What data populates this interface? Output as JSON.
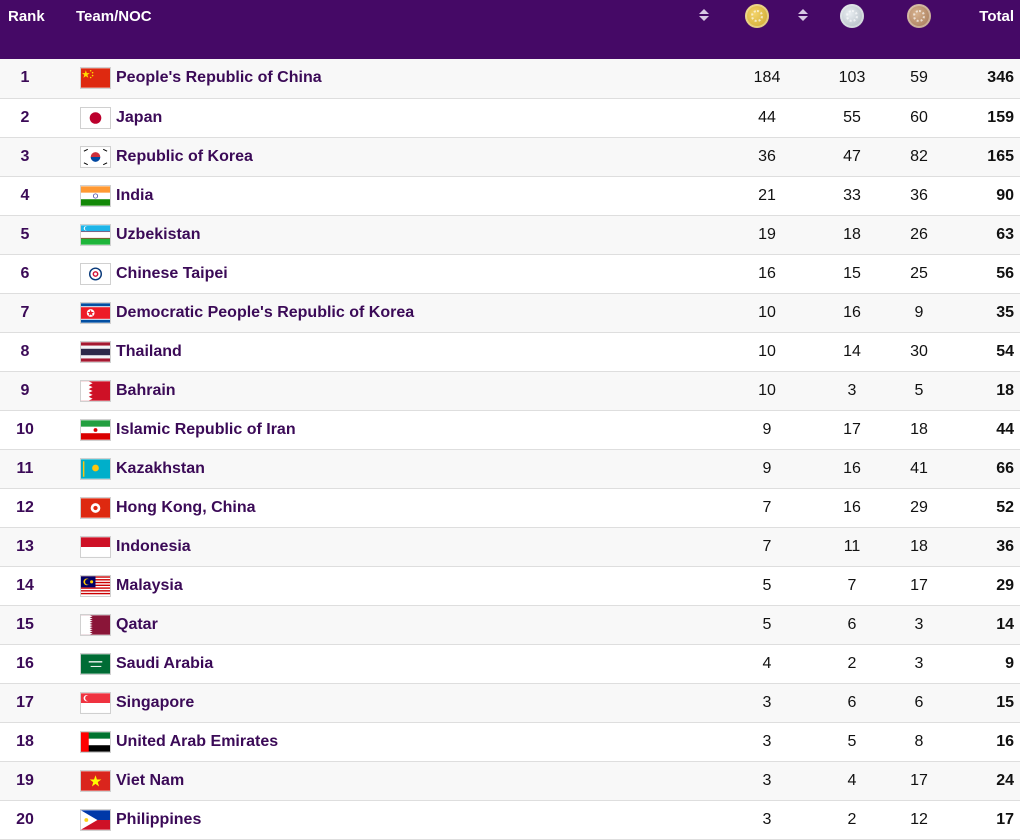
{
  "header": {
    "rank_label": "Rank",
    "team_label": "Team/NOC",
    "total_label": "Total"
  },
  "colors": {
    "header_bg": "#450966",
    "link": "#3b0a57"
  },
  "rows": [
    {
      "rank": "1",
      "name": "People's Republic of China",
      "flag": "china-flag-icon",
      "gold": "184",
      "silver": "103",
      "bronze": "59",
      "total": "346"
    },
    {
      "rank": "2",
      "name": "Japan",
      "flag": "japan-flag-icon",
      "gold": "44",
      "silver": "55",
      "bronze": "60",
      "total": "159"
    },
    {
      "rank": "3",
      "name": "Republic of Korea",
      "flag": "korea-flag-icon",
      "gold": "36",
      "silver": "47",
      "bronze": "82",
      "total": "165"
    },
    {
      "rank": "4",
      "name": "India",
      "flag": "india-flag-icon",
      "gold": "21",
      "silver": "33",
      "bronze": "36",
      "total": "90"
    },
    {
      "rank": "5",
      "name": "Uzbekistan",
      "flag": "uzbekistan-flag-icon",
      "gold": "19",
      "silver": "18",
      "bronze": "26",
      "total": "63"
    },
    {
      "rank": "6",
      "name": "Chinese Taipei",
      "flag": "chinese-taipei-flag-icon",
      "gold": "16",
      "silver": "15",
      "bronze": "25",
      "total": "56"
    },
    {
      "rank": "7",
      "name": "Democratic People's Republic of Korea",
      "flag": "dpr-korea-flag-icon",
      "gold": "10",
      "silver": "16",
      "bronze": "9",
      "total": "35"
    },
    {
      "rank": "8",
      "name": "Thailand",
      "flag": "thailand-flag-icon",
      "gold": "10",
      "silver": "14",
      "bronze": "30",
      "total": "54"
    },
    {
      "rank": "9",
      "name": "Bahrain",
      "flag": "bahrain-flag-icon",
      "gold": "10",
      "silver": "3",
      "bronze": "5",
      "total": "18"
    },
    {
      "rank": "10",
      "name": "Islamic Republic of Iran",
      "flag": "iran-flag-icon",
      "gold": "9",
      "silver": "17",
      "bronze": "18",
      "total": "44"
    },
    {
      "rank": "11",
      "name": "Kazakhstan",
      "flag": "kazakhstan-flag-icon",
      "gold": "9",
      "silver": "16",
      "bronze": "41",
      "total": "66"
    },
    {
      "rank": "12",
      "name": "Hong Kong, China",
      "flag": "hong-kong-flag-icon",
      "gold": "7",
      "silver": "16",
      "bronze": "29",
      "total": "52"
    },
    {
      "rank": "13",
      "name": "Indonesia",
      "flag": "indonesia-flag-icon",
      "gold": "7",
      "silver": "11",
      "bronze": "18",
      "total": "36"
    },
    {
      "rank": "14",
      "name": "Malaysia",
      "flag": "malaysia-flag-icon",
      "gold": "5",
      "silver": "7",
      "bronze": "17",
      "total": "29"
    },
    {
      "rank": "15",
      "name": "Qatar",
      "flag": "qatar-flag-icon",
      "gold": "5",
      "silver": "6",
      "bronze": "3",
      "total": "14"
    },
    {
      "rank": "16",
      "name": "Saudi Arabia",
      "flag": "saudi-arabia-flag-icon",
      "gold": "4",
      "silver": "2",
      "bronze": "3",
      "total": "9"
    },
    {
      "rank": "17",
      "name": "Singapore",
      "flag": "singapore-flag-icon",
      "gold": "3",
      "silver": "6",
      "bronze": "6",
      "total": "15"
    },
    {
      "rank": "18",
      "name": "United Arab Emirates",
      "flag": "uae-flag-icon",
      "gold": "3",
      "silver": "5",
      "bronze": "8",
      "total": "16"
    },
    {
      "rank": "19",
      "name": "Viet Nam",
      "flag": "viet-nam-flag-icon",
      "gold": "3",
      "silver": "4",
      "bronze": "17",
      "total": "24"
    },
    {
      "rank": "20",
      "name": "Philippines",
      "flag": "philippines-flag-icon",
      "gold": "3",
      "silver": "2",
      "bronze": "12",
      "total": "17"
    }
  ]
}
